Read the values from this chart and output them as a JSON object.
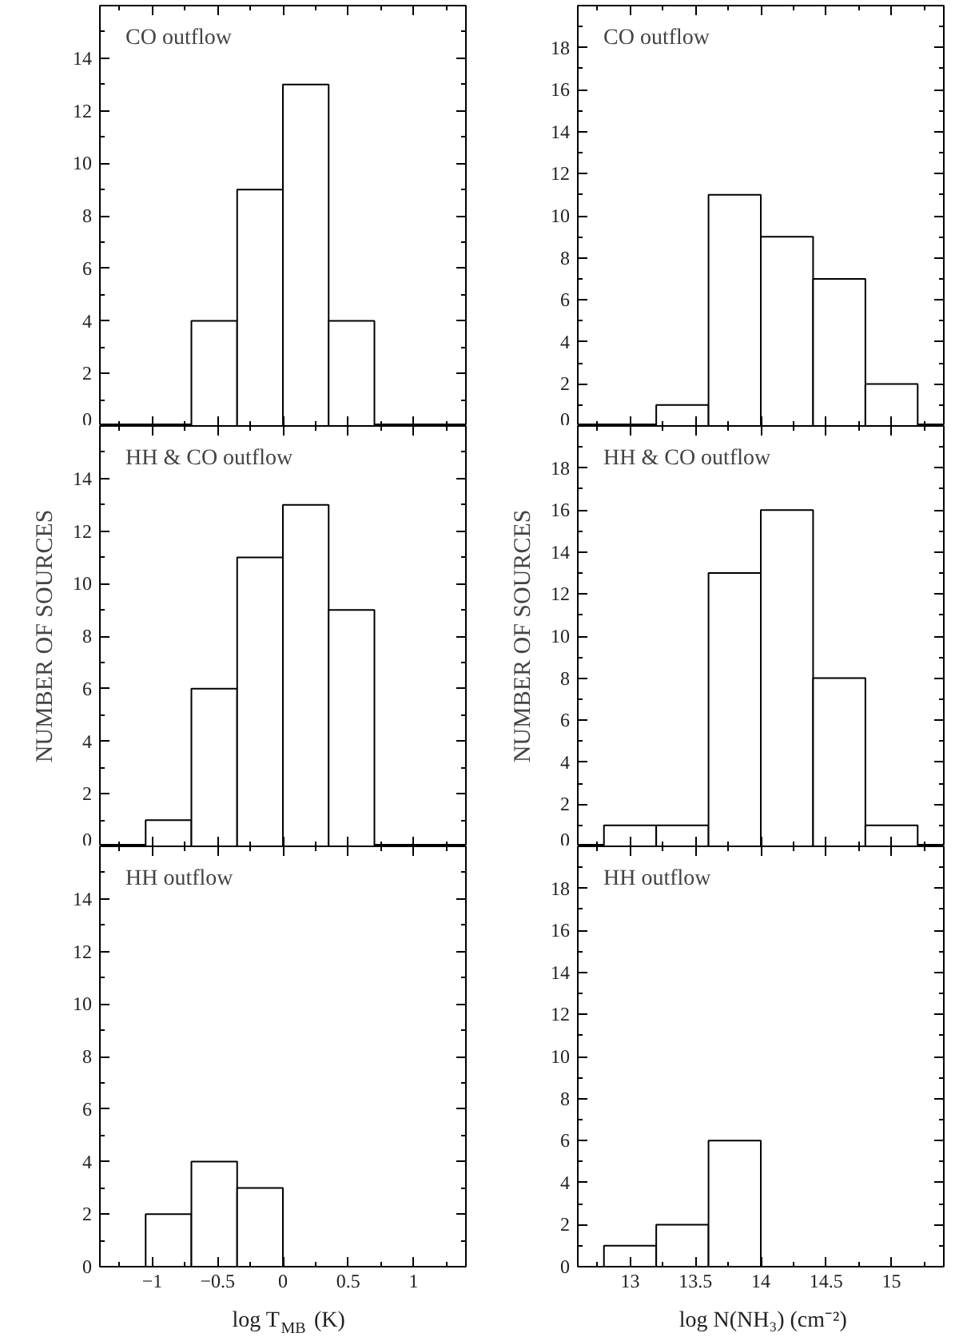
{
  "chart_data": [
    {
      "type": "histogram",
      "annotations": [
        "CO outflow"
      ],
      "bins": [
        -0.7,
        -0.35,
        0,
        0.35,
        0.7
      ],
      "values": [
        4,
        9,
        13,
        4
      ],
      "xlim": [
        -1.4,
        1.4
      ],
      "xticks": [
        -1,
        -0.5,
        0,
        0.5,
        1
      ],
      "ylim": [
        0,
        16
      ],
      "yticks": [
        0,
        2,
        4,
        6,
        8,
        10,
        12,
        14
      ],
      "tick_labels": "y",
      "grid": false
    },
    {
      "type": "histogram",
      "annotations": [
        "CO outflow"
      ],
      "bins": [
        13.2,
        13.6,
        14.0,
        14.4,
        14.8,
        15.2
      ],
      "values": [
        1,
        11,
        9,
        7,
        2
      ],
      "xlim": [
        12.6,
        15.4
      ],
      "xticks": [
        13,
        13.5,
        14,
        14.5,
        15
      ],
      "ylim": [
        0,
        20
      ],
      "yticks": [
        0,
        2,
        4,
        6,
        8,
        10,
        12,
        14,
        16,
        18
      ],
      "tick_labels": "y",
      "grid": false
    },
    {
      "type": "histogram",
      "annotations": [
        "HH & CO outflow"
      ],
      "ylabel": "NUMBER OF SOURCES",
      "bins": [
        -1.05,
        -0.7,
        -0.35,
        0,
        0.35,
        0.7
      ],
      "values": [
        1,
        6,
        11,
        13,
        9
      ],
      "xlim": [
        -1.4,
        1.4
      ],
      "xticks": [
        -1,
        -0.5,
        0,
        0.5,
        1
      ],
      "ylim": [
        0,
        16
      ],
      "yticks": [
        0,
        2,
        4,
        6,
        8,
        10,
        12,
        14
      ],
      "tick_labels": "y",
      "grid": false
    },
    {
      "type": "histogram",
      "annotations": [
        "HH & CO outflow"
      ],
      "ylabel": "NUMBER OF SOURCES",
      "bins": [
        12.8,
        13.2,
        13.6,
        14.0,
        14.4,
        14.8,
        15.2
      ],
      "values": [
        1,
        1,
        13,
        16,
        8,
        1
      ],
      "xlim": [
        12.6,
        15.4
      ],
      "xticks": [
        13,
        13.5,
        14,
        14.5,
        15
      ],
      "ylim": [
        0,
        20
      ],
      "yticks": [
        0,
        2,
        4,
        6,
        8,
        10,
        12,
        14,
        16,
        18
      ],
      "tick_labels": "y",
      "grid": false
    },
    {
      "type": "histogram",
      "annotations": [
        "HH outflow"
      ],
      "xlabel": "log T$_{MB}$ (K)",
      "bins": [
        -1.05,
        -0.7,
        -0.35,
        0
      ],
      "values": [
        2,
        4,
        3
      ],
      "xlim": [
        -1.4,
        1.4
      ],
      "xticks": [
        -1,
        -0.5,
        0,
        0.5,
        1
      ],
      "ylim": [
        0,
        16
      ],
      "yticks": [
        0,
        2,
        4,
        6,
        8,
        10,
        12,
        14
      ],
      "grid": false
    },
    {
      "type": "histogram",
      "annotations": [
        "HH outflow"
      ],
      "xlabel": "log N(NH₃) (cm⁻²)",
      "bins": [
        12.8,
        13.2,
        13.6,
        14.0
      ],
      "values": [
        1,
        2,
        6
      ],
      "xlim": [
        12.6,
        15.4
      ],
      "xticks": [
        13,
        13.5,
        14,
        14.5,
        15
      ],
      "ylim": [
        0,
        20
      ],
      "yticks": [
        0,
        2,
        4,
        6,
        8,
        10,
        12,
        14,
        16,
        18
      ],
      "grid": false
    }
  ]
}
